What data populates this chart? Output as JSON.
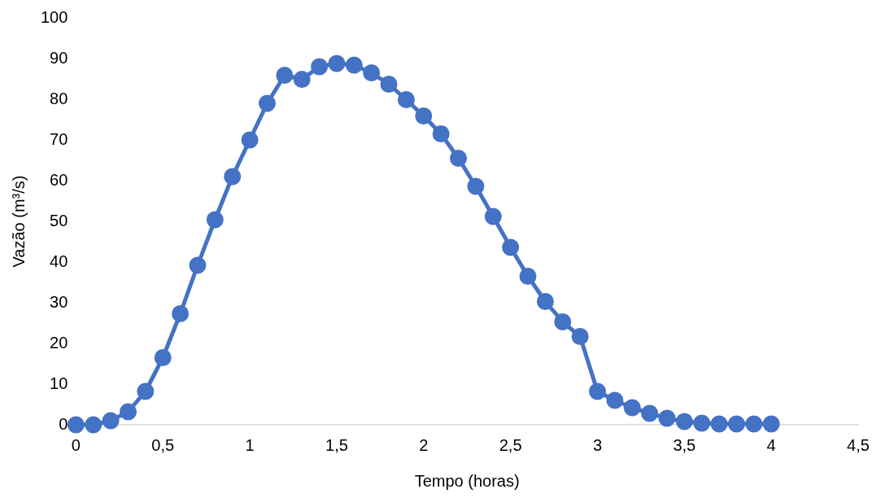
{
  "chart_data": {
    "type": "line",
    "xlabel": "Tempo (horas)",
    "ylabel": "Vazão (m³/s)",
    "x": [
      0,
      0.1,
      0.2,
      0.3,
      0.4,
      0.5,
      0.6,
      0.7,
      0.8,
      0.9,
      1,
      1.1,
      1.2,
      1.3,
      1.4,
      1.5,
      1.6,
      1.7,
      1.8,
      1.9,
      2,
      2.1,
      2.2,
      2.3,
      2.4,
      2.5,
      2.6,
      2.7,
      2.8,
      2.9,
      3,
      3.1,
      3.2,
      3.3,
      3.4,
      3.5,
      3.6,
      3.7,
      3.8,
      3.9,
      4
    ],
    "series": [
      {
        "color": "#4472c4",
        "values": [
          0,
          0,
          1,
          3.2,
          8.2,
          16.5,
          27.3,
          39.2,
          50.4,
          61,
          70,
          79,
          85.9,
          84.9,
          88,
          88.8,
          88.4,
          86.5,
          83.7,
          79.9,
          75.9,
          71.5,
          65.5,
          58.6,
          51.2,
          43.6,
          36.5,
          30.3,
          25.3,
          21.7,
          8.2,
          6,
          4.2,
          2.8,
          1.6,
          0.8,
          0.4,
          0.2,
          0.2,
          0.2,
          0.2
        ]
      }
    ],
    "xlim": [
      0,
      4.5
    ],
    "xticks": [
      {
        "value": 0,
        "label": "0"
      },
      {
        "value": 0.5,
        "label": "0,5"
      },
      {
        "value": 1,
        "label": "1"
      },
      {
        "value": 1.5,
        "label": "1,5"
      },
      {
        "value": 2,
        "label": "2"
      },
      {
        "value": 2.5,
        "label": "2,5"
      },
      {
        "value": 3,
        "label": "3"
      },
      {
        "value": 3.5,
        "label": "3,5"
      },
      {
        "value": 4,
        "label": "4"
      },
      {
        "value": 4.5,
        "label": "4,5"
      }
    ],
    "ylim": [
      0,
      100
    ],
    "yticks": [
      0,
      10,
      20,
      30,
      40,
      50,
      60,
      70,
      80,
      90,
      100
    ],
    "grid": false,
    "legend": false,
    "marker": "circle",
    "line_style": "solid"
  }
}
